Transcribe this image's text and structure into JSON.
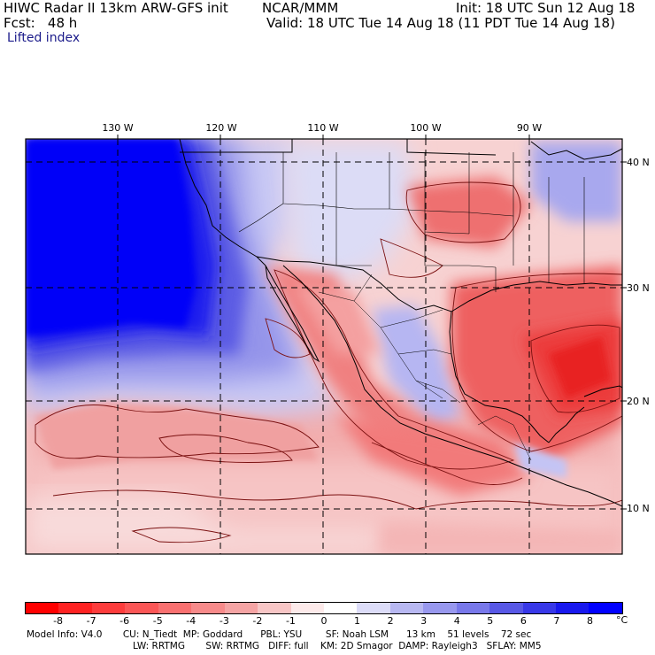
{
  "header": {
    "model": "HIWC Radar II 13km ARW-GFS init",
    "org": "NCAR/MMM",
    "init": "Init: 18 UTC Sun 12 Aug 18",
    "fcst": "Fcst:   48 h",
    "valid": "Valid: 18 UTC Tue 14 Aug 18 (11 PDT Tue 14 Aug 18)",
    "field": "Lifted index"
  },
  "map": {
    "longitude_labels": [
      "130 W",
      "120 W",
      "110 W",
      "100 W",
      "90 W"
    ],
    "latitude_labels": [
      "40 N",
      "30 N",
      "20 N",
      "10 N"
    ]
  },
  "colorbar": {
    "tick_labels": [
      "-8",
      "-7",
      "-6",
      "-5",
      "-4",
      "-3",
      "-2",
      "-1",
      "0",
      "1",
      "2",
      "3",
      "4",
      "5",
      "6",
      "7",
      "8"
    ],
    "unit": "°C",
    "colors": [
      "#ff0000",
      "#fe2222",
      "#fd3c3c",
      "#fb5656",
      "#f97070",
      "#f78a8a",
      "#f5a4a4",
      "#f8c6c6",
      "#fdeaea",
      "#ffffff",
      "#dcdcf8",
      "#b8b8f2",
      "#9898ee",
      "#7878ea",
      "#5858e6",
      "#3838e8",
      "#1818ee",
      "#0000ff"
    ]
  },
  "footer": {
    "line1": "Model Info: V4.0       CU: N_Tiedt  MP: Goddard      PBL: YSU        SF: Noah LSM      13 km    51 levels    72 sec",
    "line2": "LW: RRTMG       SW: RRTMG   DIFF: full    KM: 2D Smagor  DAMP: Rayleigh3   SFLAY: MM5"
  }
}
